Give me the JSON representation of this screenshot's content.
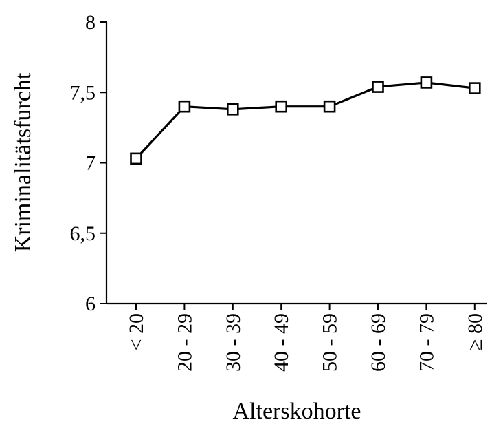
{
  "chart_data": {
    "type": "line",
    "title": "",
    "xlabel": "Alterskohorte",
    "ylabel": "Kriminalitätsfurcht",
    "categories": [
      "< 20",
      "20 - 29",
      "30 - 39",
      "40 - 49",
      "50 - 59",
      "60 - 69",
      "70 - 79",
      "≥ 80"
    ],
    "series": [
      {
        "values": [
          7.03,
          7.4,
          7.38,
          7.4,
          7.4,
          7.54,
          7.57,
          7.53
        ]
      }
    ],
    "ylim": [
      6,
      8
    ],
    "yticks": [
      6,
      6.5,
      7,
      7.5,
      8
    ],
    "ytick_labels": [
      "6",
      "6,5",
      "7",
      "7,5",
      "8"
    ],
    "marker": "open-square",
    "grid": false,
    "legend": "none"
  }
}
